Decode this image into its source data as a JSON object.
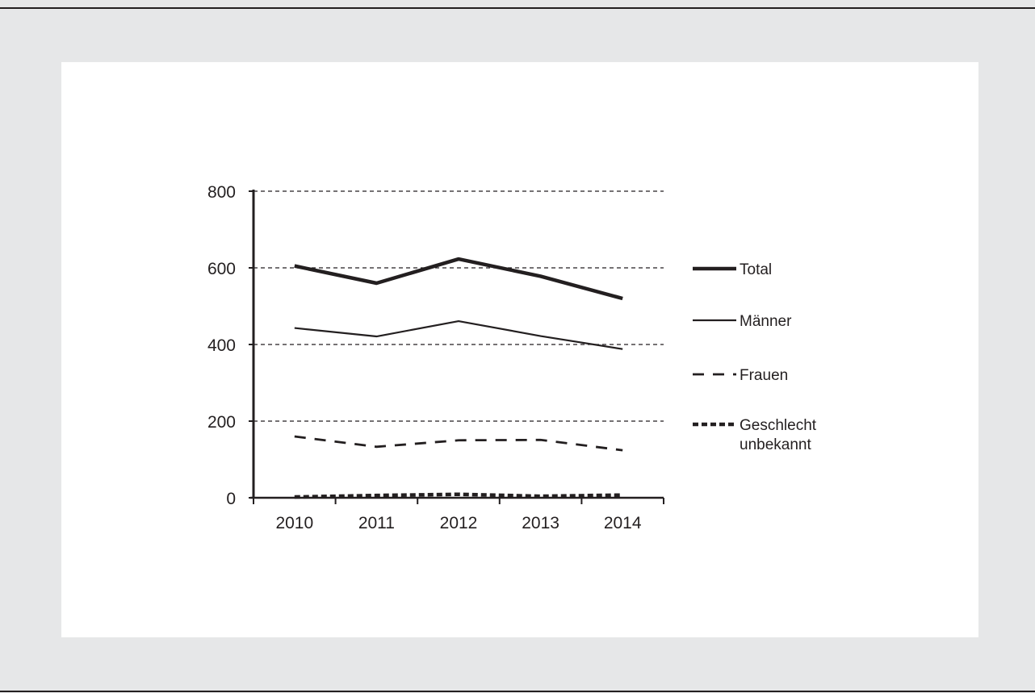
{
  "chart_data": {
    "type": "line",
    "categories": [
      "2010",
      "2011",
      "2012",
      "2013",
      "2014"
    ],
    "ylim": [
      0,
      800
    ],
    "yticks": [
      0,
      200,
      400,
      600,
      800
    ],
    "grid": true,
    "legend_position": "right",
    "series": [
      {
        "name": "Total",
        "values": [
          605,
          560,
          623,
          578,
          520
        ],
        "style": "thick-solid"
      },
      {
        "name": "Männer",
        "values": [
          443,
          421,
          461,
          422,
          388
        ],
        "style": "thin-solid"
      },
      {
        "name": "Frauen",
        "values": [
          160,
          133,
          150,
          151,
          124
        ],
        "style": "long-dash"
      },
      {
        "name_lines": [
          "Geschlecht",
          "unbekannt"
        ],
        "values": [
          2,
          6,
          9,
          4,
          7
        ],
        "style": "thick-dotted"
      }
    ],
    "colors": {
      "line": "#231f20",
      "frame": "#e6e7e8",
      "panel": "#ffffff"
    }
  }
}
